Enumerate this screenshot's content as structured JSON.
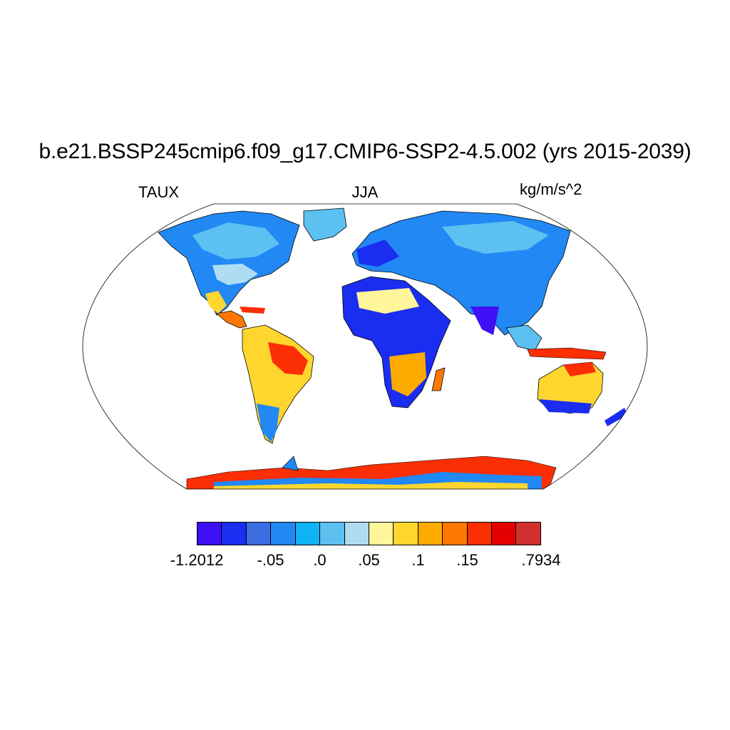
{
  "title": "b.e21.BSSP245cmip6.f09_g17.CMIP6-SSP2-4.5.002 (yrs 2015-2039)",
  "left_label": "TAUX",
  "center_label": "JJA",
  "right_label": "kg/m/s^2",
  "projection": "robinson",
  "colorbar": {
    "colors": [
      "#3f0ff5",
      "#1a2df0",
      "#3d6de3",
      "#2188f4",
      "#0fb2f5",
      "#5cc0f0",
      "#b0dcf2",
      "#fff59a",
      "#fed62e",
      "#fdab00",
      "#fe7702",
      "#fc2e04",
      "#e40000",
      "#d22f2f"
    ],
    "labels": [
      {
        "text": "-1.2012",
        "boundary": 0
      },
      {
        "text": "-.05",
        "boundary": 3
      },
      {
        "text": ".0",
        "boundary": 5
      },
      {
        "text": ".05",
        "boundary": 7
      },
      {
        "text": ".1",
        "boundary": 9
      },
      {
        "text": ".15",
        "boundary": 11
      },
      {
        "text": ".7934",
        "boundary": 14
      }
    ]
  }
}
